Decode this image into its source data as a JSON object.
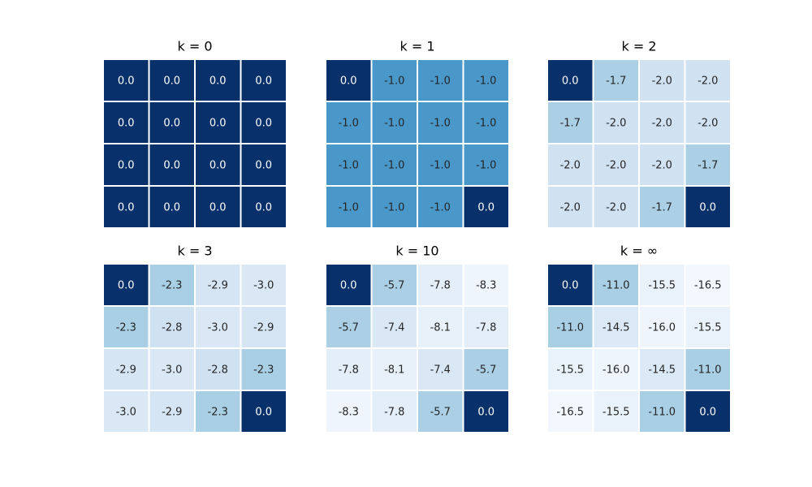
{
  "chart_data": [
    {
      "type": "heatmap",
      "title": "k = 0",
      "values": [
        [
          0,
          0,
          0,
          0
        ],
        [
          0,
          0,
          0,
          0
        ],
        [
          0,
          0,
          0,
          0
        ],
        [
          0,
          0,
          0,
          0
        ]
      ],
      "value_labels": [
        [
          "0.0",
          "0.0",
          "0.0",
          "0.0"
        ],
        [
          "0.0",
          "0.0",
          "0.0",
          "0.0"
        ],
        [
          "0.0",
          "0.0",
          "0.0",
          "0.0"
        ],
        [
          "0.0",
          "0.0",
          "0.0",
          "0.0"
        ]
      ],
      "colors": [
        [
          "#08306b",
          "#08306b",
          "#08306b",
          "#08306b"
        ],
        [
          "#08306b",
          "#08306b",
          "#08306b",
          "#08306b"
        ],
        [
          "#08306b",
          "#08306b",
          "#08306b",
          "#08306b"
        ],
        [
          "#08306b",
          "#08306b",
          "#08306b",
          "#08306b"
        ]
      ]
    },
    {
      "type": "heatmap",
      "title": "k = 1",
      "values": [
        [
          0,
          -1,
          -1,
          -1
        ],
        [
          -1,
          -1,
          -1,
          -1
        ],
        [
          -1,
          -1,
          -1,
          -1
        ],
        [
          -1,
          -1,
          -1,
          0
        ]
      ],
      "value_labels": [
        [
          "0.0",
          "-1.0",
          "-1.0",
          "-1.0"
        ],
        [
          "-1.0",
          "-1.0",
          "-1.0",
          "-1.0"
        ],
        [
          "-1.0",
          "-1.0",
          "-1.0",
          "-1.0"
        ],
        [
          "-1.0",
          "-1.0",
          "-1.0",
          "0.0"
        ]
      ],
      "colors": [
        [
          "#08306b",
          "#4a98c9",
          "#4a98c9",
          "#4a98c9"
        ],
        [
          "#4a98c9",
          "#4a98c9",
          "#4a98c9",
          "#4a98c9"
        ],
        [
          "#4a98c9",
          "#4a98c9",
          "#4a98c9",
          "#4a98c9"
        ],
        [
          "#4a98c9",
          "#4a98c9",
          "#4a98c9",
          "#08306b"
        ]
      ]
    },
    {
      "type": "heatmap",
      "title": "k = 2",
      "values": [
        [
          0,
          -1.7,
          -2,
          -2
        ],
        [
          -1.7,
          -2,
          -2,
          -2
        ],
        [
          -2,
          -2,
          -2,
          -1.7
        ],
        [
          -2,
          -2,
          -1.7,
          0
        ]
      ],
      "value_labels": [
        [
          "0.0",
          "-1.7",
          "-2.0",
          "-2.0"
        ],
        [
          "-1.7",
          "-2.0",
          "-2.0",
          "-2.0"
        ],
        [
          "-2.0",
          "-2.0",
          "-2.0",
          "-1.7"
        ],
        [
          "-2.0",
          "-2.0",
          "-1.7",
          "0.0"
        ]
      ],
      "colors": [
        [
          "#08306b",
          "#abd0e6",
          "#d0e1f2",
          "#d0e1f2"
        ],
        [
          "#abd0e6",
          "#d0e1f2",
          "#d0e1f2",
          "#d0e1f2"
        ],
        [
          "#d0e1f2",
          "#d0e1f2",
          "#d0e1f2",
          "#abd0e6"
        ],
        [
          "#d0e1f2",
          "#d0e1f2",
          "#abd0e6",
          "#08306b"
        ]
      ]
    },
    {
      "type": "heatmap",
      "title": "k = 3",
      "values": [
        [
          0,
          -2.3,
          -2.9,
          -3
        ],
        [
          -2.3,
          -2.8,
          -3,
          -2.9
        ],
        [
          -2.9,
          -3,
          -2.8,
          -2.3
        ],
        [
          -3,
          -2.9,
          -2.3,
          0
        ]
      ],
      "value_labels": [
        [
          "0.0",
          "-2.3",
          "-2.9",
          "-3.0"
        ],
        [
          "-2.3",
          "-2.8",
          "-3.0",
          "-2.9"
        ],
        [
          "-2.9",
          "-3.0",
          "-2.8",
          "-2.3"
        ],
        [
          "-3.0",
          "-2.9",
          "-2.3",
          "0.0"
        ]
      ],
      "colors": [
        [
          "#08306b",
          "#a9cfe5",
          "#d5e5f4",
          "#dae8f6"
        ],
        [
          "#a9cfe5",
          "#d0e1f2",
          "#dae8f6",
          "#d5e5f4"
        ],
        [
          "#d5e5f4",
          "#dae8f6",
          "#d0e1f2",
          "#a9cfe5"
        ],
        [
          "#dae8f6",
          "#d5e5f4",
          "#a9cfe5",
          "#08306b"
        ]
      ]
    },
    {
      "type": "heatmap",
      "title": "k = 10",
      "values": [
        [
          0,
          -5.7,
          -7.8,
          -8.3
        ],
        [
          -5.7,
          -7.4,
          -8.1,
          -7.8
        ],
        [
          -7.8,
          -8.1,
          -7.4,
          -5.7
        ],
        [
          -8.3,
          -7.8,
          -5.7,
          0
        ]
      ],
      "value_labels": [
        [
          "0.0",
          "-5.7",
          "-7.8",
          "-8.3"
        ],
        [
          "-5.7",
          "-7.4",
          "-8.1",
          "-7.8"
        ],
        [
          "-7.8",
          "-8.1",
          "-7.4",
          "-5.7"
        ],
        [
          "-8.3",
          "-7.8",
          "-5.7",
          "0.0"
        ]
      ],
      "colors": [
        [
          "#08306b",
          "#abd0e6",
          "#e3eef9",
          "#eef5fc"
        ],
        [
          "#abd0e6",
          "#dae8f6",
          "#e8f1fa",
          "#e3eef9"
        ],
        [
          "#e3eef9",
          "#e8f1fa",
          "#dae8f6",
          "#abd0e6"
        ],
        [
          "#eef5fc",
          "#e3eef9",
          "#abd0e6",
          "#08306b"
        ]
      ]
    },
    {
      "type": "heatmap",
      "title": "k = ∞",
      "values": [
        [
          0,
          -11,
          -15.5,
          -16.5
        ],
        [
          -11,
          -14.5,
          -16,
          -15.5
        ],
        [
          -15.5,
          -16,
          -14.5,
          -11
        ],
        [
          -16.5,
          -15.5,
          -11,
          0
        ]
      ],
      "value_labels": [
        [
          "0.0",
          "-11.0",
          "-15.5",
          "-16.5"
        ],
        [
          "-11.0",
          "-14.5",
          "-16.0",
          "-15.5"
        ],
        [
          "-15.5",
          "-16.0",
          "-14.5",
          "-11.0"
        ],
        [
          "-16.5",
          "-15.5",
          "-11.0",
          "0.0"
        ]
      ],
      "colors": [
        [
          "#08306b",
          "#a9cfe5",
          "#e9f2fa",
          "#f3f8fe"
        ],
        [
          "#a9cfe5",
          "#dbe9f6",
          "#eef5fc",
          "#e9f2fa"
        ],
        [
          "#e9f2fa",
          "#eef5fc",
          "#dbe9f6",
          "#a9cfe5"
        ],
        [
          "#f3f8fe",
          "#e9f2fa",
          "#a9cfe5",
          "#08306b"
        ]
      ]
    }
  ]
}
